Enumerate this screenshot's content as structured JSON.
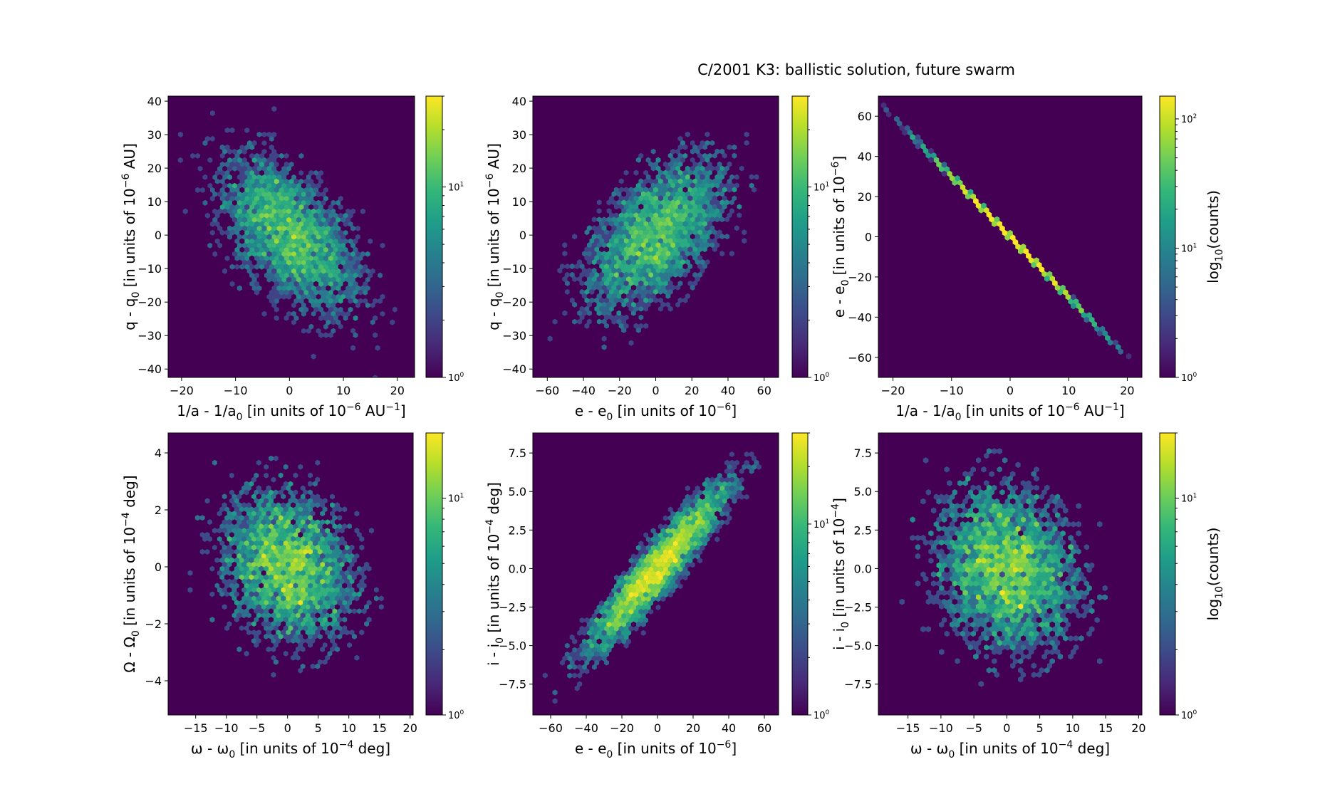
{
  "figure": {
    "title": "C/2001 K3:  ballistic solution, future swarm"
  },
  "chart_data": [
    {
      "type": "heatmap",
      "xlabel": {
        "main": "1/a - 1/a",
        "sub": "0",
        "tail": " [in units of 10",
        "sup": "−6",
        "tail2": " AU",
        "sup2": "−1",
        "end": "]"
      },
      "ylabel": {
        "main": "q - q",
        "sub": "0",
        "tail": " [in units of 10",
        "sup": "−6",
        "tail2": " AU]"
      },
      "xlim": [
        -22.5,
        23.2
      ],
      "ylim": [
        -42.5,
        41.5
      ],
      "xticks": [
        -20,
        -10,
        0,
        10,
        20
      ],
      "xtick_labels": [
        "−20",
        "−10",
        "0",
        "10",
        "20"
      ],
      "yticks": [
        -40,
        -30,
        -20,
        -10,
        0,
        10,
        20,
        30,
        40
      ],
      "ytick_labels": [
        "−40",
        "−30",
        "−20",
        "−10",
        "0",
        "10",
        "20",
        "30",
        "40"
      ],
      "distribution": {
        "kind": "gaussian",
        "sx": 7.0,
        "sy": 12.5,
        "rho": -0.55,
        "n": 5000
      },
      "colorbar": {
        "scale": "log",
        "max": 30,
        "label": ""
      }
    },
    {
      "type": "heatmap",
      "xlabel": {
        "main": "e - e",
        "sub": "0",
        "tail": " [in units of 10",
        "sup": "−6",
        "end": "]"
      },
      "ylabel": {
        "main": "q - q",
        "sub": "0",
        "tail": " [in units of 10",
        "sup": "−6",
        "tail2": " AU]"
      },
      "xlim": [
        -68,
        68
      ],
      "ylim": [
        -42.5,
        41.5
      ],
      "xticks": [
        -60,
        -40,
        -20,
        0,
        20,
        40,
        60
      ],
      "xtick_labels": [
        "−60",
        "−40",
        "−20",
        "0",
        "20",
        "40",
        "60"
      ],
      "yticks": [
        -40,
        -30,
        -20,
        -10,
        0,
        10,
        20,
        30,
        40
      ],
      "ytick_labels": [
        "−40",
        "−30",
        "−20",
        "−10",
        "0",
        "10",
        "20",
        "30",
        "40"
      ],
      "distribution": {
        "kind": "gaussian",
        "sx": 21.0,
        "sy": 12.5,
        "rho": 0.55,
        "n": 5000
      },
      "colorbar": {
        "scale": "log",
        "max": 30,
        "label": ""
      }
    },
    {
      "type": "heatmap",
      "xlabel": {
        "main": "1/a - 1/a",
        "sub": "0",
        "tail": " [in units of 10",
        "sup": "−6",
        "tail2": " AU",
        "sup2": "−1",
        "end": "]"
      },
      "ylabel": {
        "main": "e - e",
        "sub": "0",
        "tail": " [in units of 10",
        "sup": "−6",
        "end": "]"
      },
      "xlim": [
        -22.5,
        22.5
      ],
      "ylim": [
        -70,
        70
      ],
      "xticks": [
        -20,
        -10,
        0,
        10,
        20
      ],
      "xtick_labels": [
        "−20",
        "−10",
        "0",
        "10",
        "20"
      ],
      "yticks": [
        -60,
        -40,
        -20,
        0,
        20,
        40,
        60
      ],
      "ytick_labels": [
        "−60",
        "−40",
        "−20",
        "0",
        "20",
        "40",
        "60"
      ],
      "distribution": {
        "kind": "linear",
        "slope": -3.0,
        "sx": 7.0,
        "n": 5000
      },
      "colorbar": {
        "scale": "log",
        "max": 150,
        "label": "log10(counts)"
      }
    },
    {
      "type": "heatmap",
      "xlabel": {
        "main": "ω - ω",
        "sub": "0",
        "tail": " [in units of 10",
        "sup": "−4",
        "tail2": " deg]"
      },
      "ylabel": {
        "main": "Ω - Ω",
        "sub": "0",
        "tail": " [in units of 10",
        "sup": "−4",
        "tail2": " deg]"
      },
      "xlim": [
        -19.5,
        20.5
      ],
      "ylim": [
        -5.2,
        4.7
      ],
      "xticks": [
        -15,
        -10,
        -5,
        0,
        5,
        10,
        15,
        20
      ],
      "xtick_labels": [
        "−15",
        "−10",
        "−5",
        "0",
        "5",
        "10",
        "15",
        "20"
      ],
      "yticks": [
        -4,
        -2,
        0,
        2,
        4
      ],
      "ytick_labels": [
        "−4",
        "−2",
        "0",
        "2",
        "4"
      ],
      "distribution": {
        "kind": "gaussian",
        "sx": 5.8,
        "sy": 1.45,
        "rho": -0.2,
        "n": 5000
      },
      "colorbar": {
        "scale": "log",
        "max": 20,
        "label": ""
      }
    },
    {
      "type": "heatmap",
      "xlabel": {
        "main": "e - e",
        "sub": "0",
        "tail": " [in units of 10",
        "sup": "−6",
        "end": "]"
      },
      "ylabel": {
        "main": "i - i",
        "sub": "0",
        "tail": " [in units of 10",
        "sup": "−4",
        "tail2": " deg]"
      },
      "xlim": [
        -70,
        68
      ],
      "ylim": [
        -9.5,
        8.8
      ],
      "xticks": [
        -60,
        -40,
        -20,
        0,
        20,
        40,
        60
      ],
      "xtick_labels": [
        "−60",
        "−40",
        "−20",
        "0",
        "20",
        "40",
        "60"
      ],
      "yticks": [
        -7.5,
        -5.0,
        -2.5,
        0.0,
        2.5,
        5.0,
        7.5
      ],
      "ytick_labels": [
        "−7.5",
        "−5.0",
        "−2.5",
        "0.0",
        "2.5",
        "5.0",
        "7.5"
      ],
      "distribution": {
        "kind": "gaussian",
        "sx": 21.0,
        "sy": 2.9,
        "rho": 0.93,
        "n": 5000
      },
      "colorbar": {
        "scale": "log",
        "max": 30,
        "label": ""
      }
    },
    {
      "type": "heatmap",
      "xlabel": {
        "main": "ω - ω",
        "sub": "0",
        "tail": " [in units of 10",
        "sup": "−4",
        "tail2": " deg]"
      },
      "ylabel": {
        "main": "i - i",
        "sub": "0",
        "tail": " [in units of 10",
        "sup": "−4",
        "end": "]"
      },
      "xlim": [
        -19.5,
        20.5
      ],
      "ylim": [
        -9.5,
        8.8
      ],
      "xticks": [
        -15,
        -10,
        -5,
        0,
        5,
        10,
        15,
        20
      ],
      "xtick_labels": [
        "−15",
        "−10",
        "−5",
        "0",
        "5",
        "10",
        "15",
        "20"
      ],
      "yticks": [
        -7.5,
        -5.0,
        -2.5,
        0.0,
        2.5,
        5.0,
        7.5
      ],
      "ytick_labels": [
        "−7.5",
        "−5.0",
        "−2.5",
        "0.0",
        "2.5",
        "5.0",
        "7.5"
      ],
      "distribution": {
        "kind": "gaussian",
        "sx": 5.8,
        "sy": 2.9,
        "rho": -0.15,
        "n": 5000
      },
      "colorbar": {
        "scale": "log",
        "max": 20,
        "label": "log10(counts)"
      }
    }
  ],
  "colors": {
    "viridis": [
      "#440154",
      "#482878",
      "#3e4989",
      "#31688e",
      "#26828e",
      "#1f9e89",
      "#35b779",
      "#6ece58",
      "#b5de2b",
      "#fde725"
    ]
  }
}
